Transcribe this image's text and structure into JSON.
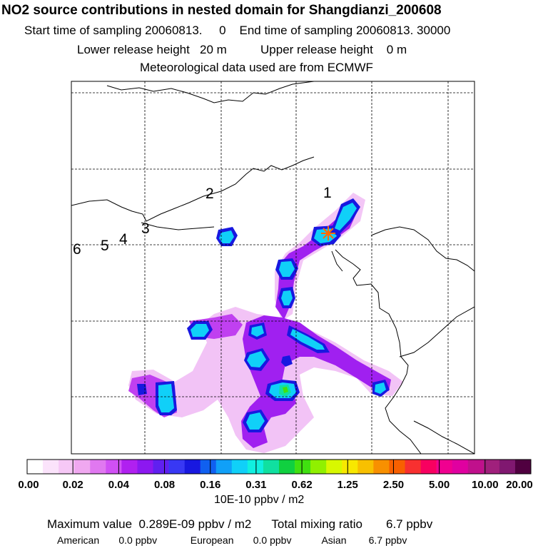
{
  "header": {
    "title": "NO2 source contributions in nested domain for Shangdianzi_200608",
    "start_label": "Start time of sampling",
    "start_value": "20060813.     0",
    "end_label": "End time of sampling",
    "end_value": "20060813. 30000",
    "lower_label": "Lower release height",
    "lower_value": "20 m",
    "upper_label": "Upper release height",
    "upper_value": "0 m",
    "met_line": "Meteorological data used are from ECMWF"
  },
  "map": {
    "contour_labels": [
      "1",
      "2",
      "3",
      "4",
      "5",
      "6"
    ],
    "station_marker": "station-star",
    "marker_color": "#ff6a00"
  },
  "colorbar": {
    "colors": [
      "#ffffff",
      "#fbe3fb",
      "#f6c8f6",
      "#f0a8f0",
      "#e078f0",
      "#d050f4",
      "#b020f0",
      "#8c18f0",
      "#6020f0",
      "#3838f4",
      "#1818e0",
      "#1060f0",
      "#10a0f8",
      "#10d0f8",
      "#10f0e0",
      "#10e0a0",
      "#10d040",
      "#40e010",
      "#90f000",
      "#d8f800",
      "#f8e800",
      "#f8c000",
      "#f89000",
      "#f86000",
      "#f83030",
      "#f80060",
      "#f00090",
      "#e000a0",
      "#c0108c",
      "#a0207c",
      "#801870",
      "#500040"
    ],
    "tick_labels": [
      "0.00",
      "0.02",
      "0.04",
      "0.08",
      "0.16",
      "0.31",
      "0.62",
      "1.25",
      "2.50",
      "5.00",
      "10.00",
      "20.00"
    ],
    "unit": "10E-10 ppbv / m2"
  },
  "footer": {
    "max_label": "Maximum value",
    "max_value": "0.289E-09 ppbv / m2",
    "total_label": "Total mixing ratio",
    "total_value": "6.7 ppbv",
    "american_label": "American",
    "american_value": "0.0 ppbv",
    "european_label": "European",
    "european_value": "0.0 ppbv",
    "asian_label": "Asian",
    "asian_value": "6.7 ppbv"
  }
}
